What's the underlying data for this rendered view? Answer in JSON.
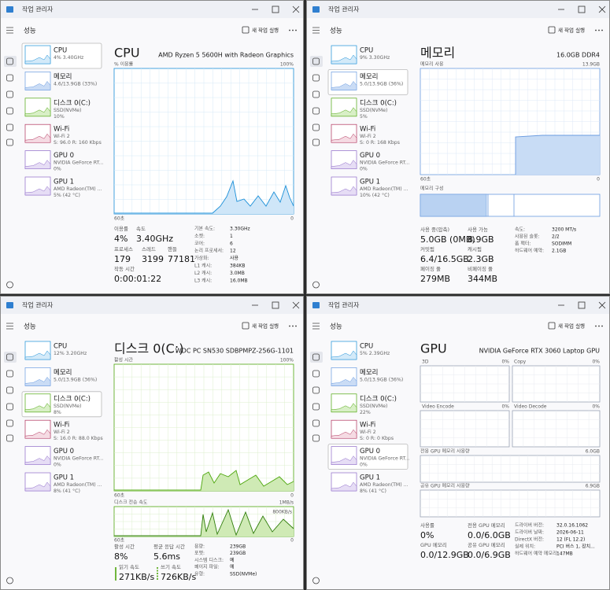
{
  "windows": [
    {
      "title": "작업 관리자",
      "section": "성능",
      "action": "새 작업 실행",
      "sidebar": [
        {
          "name": "CPU",
          "lines": [
            "4% 3.40GHz"
          ],
          "selected": true
        },
        {
          "name": "메모리",
          "lines": [
            "4.6/13.9GB (33%)"
          ]
        },
        {
          "name": "디스크 0(C:)",
          "lines": [
            "SSD(NVMe)",
            "10%"
          ]
        },
        {
          "name": "Wi-Fi",
          "lines": [
            "Wi-Fi 2",
            "S: 96.0 R: 160 Kbps"
          ]
        },
        {
          "name": "GPU 0",
          "lines": [
            "NVIDIA GeForce RT...",
            "0%"
          ]
        },
        {
          "name": "GPU 1",
          "lines": [
            "AMD Radeon(TM) ...",
            "5% (42 °C)"
          ]
        }
      ],
      "panel": {
        "title": "CPU",
        "subtitle": "AMD Ryzen 5 5600H with Radeon Graphics",
        "graph_labels": [
          "% 이용률",
          "100%",
          "60초",
          "0"
        ],
        "stats": [
          {
            "label": "이용률",
            "value": "4%"
          },
          {
            "label": "속도",
            "value": "3.40GHz"
          },
          {
            "label": "프로세스",
            "value": "179"
          },
          {
            "label": "스레드",
            "value": "3199"
          },
          {
            "label": "핸들",
            "value": "77181"
          },
          {
            "label": "작동 시간",
            "value": "0:00:01:22"
          }
        ],
        "details": [
          {
            "label": "기본 속도:",
            "value": "3.30GHz"
          },
          {
            "label": "소켓:",
            "value": "1"
          },
          {
            "label": "코어:",
            "value": "6"
          },
          {
            "label": "논리 프로세서:",
            "value": "12"
          },
          {
            "label": "가상화:",
            "value": "사용"
          },
          {
            "label": "L1 캐시:",
            "value": "384KB"
          },
          {
            "label": "L2 캐시:",
            "value": "3.0MB"
          },
          {
            "label": "L3 캐시:",
            "value": "16.0MB"
          }
        ]
      }
    },
    {
      "title": "작업 관리자",
      "section": "성능",
      "action": "새 작업 실행",
      "sidebar": [
        {
          "name": "CPU",
          "lines": [
            "9% 3.30GHz"
          ]
        },
        {
          "name": "메모리",
          "lines": [
            "5.0/13.9GB (36%)"
          ],
          "selected": true
        },
        {
          "name": "디스크 0(C:)",
          "lines": [
            "SSD(NVMe)",
            "5%"
          ]
        },
        {
          "name": "Wi-Fi",
          "lines": [
            "Wi-Fi 2",
            "S: 0 R: 168 Kbps"
          ]
        },
        {
          "name": "GPU 0",
          "lines": [
            "NVIDIA GeForce RT...",
            "0%"
          ]
        },
        {
          "name": "GPU 1",
          "lines": [
            "AMD Radeon(TM) ...",
            "10% (42 °C)"
          ]
        }
      ],
      "panel": {
        "title": "메모리",
        "subtitle": "16.0GB DDR4",
        "graph_labels": [
          "메모리 사용",
          "13.9GB",
          "60초",
          "0",
          "메모리 구성"
        ],
        "stats": [
          {
            "label": "사용 중(압축)",
            "value": "5.0GB (0MB)"
          },
          {
            "label": "사용 가능",
            "value": "8.9GB"
          },
          {
            "label": "커밋됨",
            "value": "6.4/16.5GB"
          },
          {
            "label": "캐시됨",
            "value": "2.3GB"
          },
          {
            "label": "페이징 풀",
            "value": "279MB"
          },
          {
            "label": "비페이징 풀",
            "value": "344MB"
          }
        ],
        "details": [
          {
            "label": "속도:",
            "value": "3200 MT/s"
          },
          {
            "label": "사용된 슬롯:",
            "value": "2/2"
          },
          {
            "label": "폼 팩터:",
            "value": "SODIMM"
          },
          {
            "label": "하드웨어 예약:",
            "value": "2.1GB"
          }
        ]
      }
    },
    {
      "title": "작업 관리자",
      "section": "성능",
      "action": "새 작업 실행",
      "sidebar": [
        {
          "name": "CPU",
          "lines": [
            "12% 3.20GHz"
          ]
        },
        {
          "name": "메모리",
          "lines": [
            "5.0/13.9GB (36%)"
          ]
        },
        {
          "name": "디스크 0(C:)",
          "lines": [
            "SSD(NVMe)",
            "8%"
          ],
          "selected": true
        },
        {
          "name": "Wi-Fi",
          "lines": [
            "Wi-Fi 2",
            "S: 16.0 R: 88.0 Kbps"
          ]
        },
        {
          "name": "GPU 0",
          "lines": [
            "NVIDIA GeForce RT...",
            "0%"
          ]
        },
        {
          "name": "GPU 1",
          "lines": [
            "AMD Radeon(TM) ...",
            "8% (41 °C)"
          ]
        }
      ],
      "panel": {
        "title": "디스크 0(C:)",
        "subtitle": "WDC PC SN530 SDBPMPZ-256G-1101",
        "graph_labels": [
          "활성 시간",
          "100%",
          "60초",
          "0",
          "디스크 전송 속도",
          "1MB/s",
          "800KB/s",
          "60초",
          "0"
        ],
        "stats": [
          {
            "label": "활성 시간",
            "value": "8%"
          },
          {
            "label": "평균 응답 시간",
            "value": "5.6ms"
          },
          {
            "label": "읽기 속도",
            "value": "271KB/s"
          },
          {
            "label": "쓰기 속도",
            "value": "726KB/s"
          }
        ],
        "details": [
          {
            "label": "용량:",
            "value": "239GB"
          },
          {
            "label": "포맷:",
            "value": "239GB"
          },
          {
            "label": "시스템 디스크:",
            "value": "예"
          },
          {
            "label": "페이지 파일:",
            "value": "예"
          },
          {
            "label": "유형:",
            "value": "SSD(NVMe)"
          }
        ]
      }
    },
    {
      "title": "작업 관리자",
      "section": "성능",
      "action": "새 작업 실행",
      "sidebar": [
        {
          "name": "CPU",
          "lines": [
            "5% 2.39GHz"
          ]
        },
        {
          "name": "메모리",
          "lines": [
            "5.0/13.9GB (36%)"
          ]
        },
        {
          "name": "디스크 0(C:)",
          "lines": [
            "SSD(NVMe)",
            "22%"
          ]
        },
        {
          "name": "Wi-Fi",
          "lines": [
            "Wi-Fi 2",
            "S: 0 R: 0 Kbps"
          ]
        },
        {
          "name": "GPU 0",
          "lines": [
            "NVIDIA GeForce RT...",
            "0%"
          ],
          "selected": true
        },
        {
          "name": "GPU 1",
          "lines": [
            "AMD Radeon(TM) ...",
            "8% (41 °C)"
          ]
        }
      ],
      "panel": {
        "title": "GPU",
        "subtitle": "NVIDIA GeForce RTX 3060 Laptop GPU",
        "graph_labels": [
          "3D",
          "0%",
          "Copy",
          "0%",
          "Video Encode",
          "0%",
          "Video Decode",
          "0%",
          "전용 GPU 메모리 사용량",
          "6.0GB",
          "공유 GPU 메모리 사용량",
          "6.9GB"
        ],
        "stats": [
          {
            "label": "사용률",
            "value": "0%"
          },
          {
            "label": "전용 GPU 메모리",
            "value": "0.0/6.0GB"
          },
          {
            "label": "GPU 메모리",
            "value": "0.0/12.9GB"
          },
          {
            "label": "공유 GPU 메모리",
            "value": "0.0/6.9GB"
          }
        ],
        "details": [
          {
            "label": "드라이버 버전:",
            "value": "32.0.16.1062"
          },
          {
            "label": "드라이버 날짜:",
            "value": "2026-06-11"
          },
          {
            "label": "DirectX 버전:",
            "value": "12 (FL 12.2)"
          },
          {
            "label": "실제 위치:",
            "value": "PCI 버스 1, 장치..."
          },
          {
            "label": "하드웨어 예약 메모리:",
            "value": "147MB"
          }
        ]
      }
    }
  ]
}
